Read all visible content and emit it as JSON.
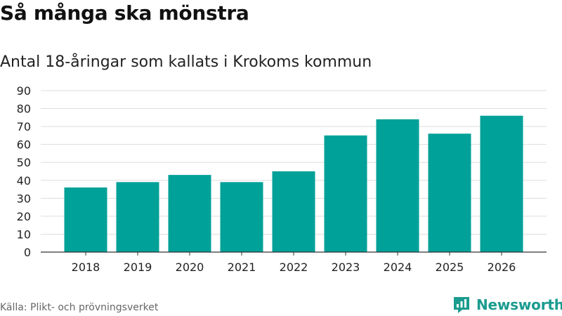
{
  "header": {
    "title": "Så många ska mönstra",
    "subtitle": "Antal 18-åringar som kallats i Krokoms kommun"
  },
  "footer": {
    "source": "Källa: Plikt- och prövningsverket",
    "brand": "Newsworthy",
    "brand_icon": "bar-chart-flag-icon",
    "brand_color": "#1a9c8f"
  },
  "chart_data": {
    "type": "bar",
    "title": "Så många ska mönstra",
    "subtitle": "Antal 18-åringar som kallats i Krokoms kommun",
    "categories": [
      "2018",
      "2019",
      "2020",
      "2021",
      "2022",
      "2023",
      "2024",
      "2025",
      "2026"
    ],
    "values": [
      36,
      39,
      43,
      39,
      45,
      65,
      74,
      66,
      76
    ],
    "xlabel": "",
    "ylabel": "",
    "ylim": [
      0,
      90
    ],
    "yticks": [
      0,
      10,
      20,
      30,
      40,
      50,
      60,
      70,
      80,
      90
    ],
    "grid": true,
    "bar_color": "#00a199"
  }
}
